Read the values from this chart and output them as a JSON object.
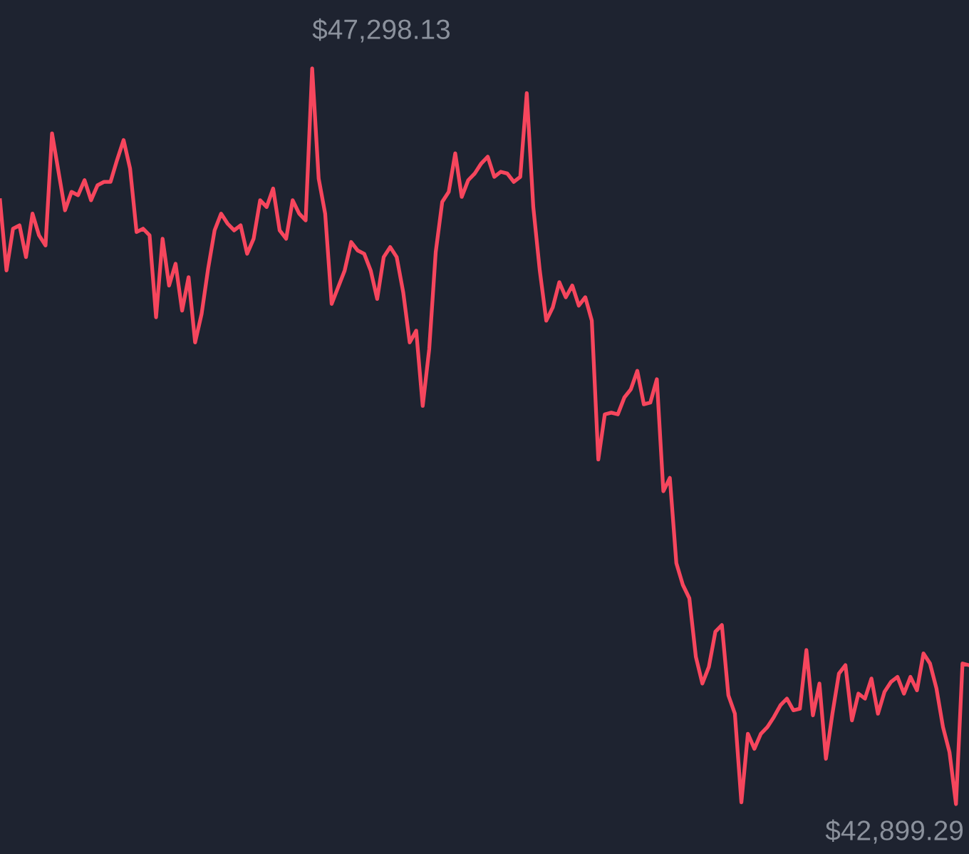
{
  "chart_data": {
    "type": "line",
    "line_style": "solid",
    "categories": [
      null,
      null,
      null,
      null,
      null,
      null,
      null,
      null,
      null,
      null,
      null,
      null,
      null,
      null,
      null,
      null,
      null,
      null,
      null,
      null,
      null,
      null,
      null,
      null,
      null,
      null,
      null,
      null,
      null,
      null,
      null,
      null,
      null,
      null,
      null,
      null,
      null,
      null,
      null,
      null,
      null,
      null,
      null,
      null,
      null,
      null,
      null,
      null,
      null,
      null,
      null,
      null,
      null,
      null,
      null,
      null,
      null,
      null,
      null,
      null,
      null,
      null,
      null,
      null,
      null,
      null,
      null,
      null,
      null,
      null,
      null,
      null,
      null,
      null,
      null,
      null,
      null,
      null,
      null,
      null,
      null,
      null,
      null,
      null,
      null,
      null,
      null,
      null,
      null,
      null,
      null,
      null,
      null,
      null,
      null,
      null,
      null,
      null,
      null,
      null,
      null,
      null,
      null,
      null,
      null,
      null,
      null,
      null,
      null,
      null,
      null,
      null,
      null,
      null,
      null,
      null,
      null,
      null,
      null,
      null,
      null,
      null,
      null,
      null,
      null,
      null,
      null,
      null,
      null,
      null,
      null,
      null,
      null,
      null,
      null,
      null,
      null,
      null,
      null,
      null,
      null,
      null,
      null,
      null,
      null,
      null,
      null,
      null,
      null,
      null
    ],
    "series": [
      {
        "color": "#f6465d",
        "values": [
          46510,
          46090,
          46340,
          46360,
          46170,
          46430,
          46300,
          46240,
          46910,
          46680,
          46450,
          46560,
          46540,
          46630,
          46510,
          46600,
          46620,
          46620,
          46750,
          46870,
          46700,
          46320,
          46340,
          46300,
          45810,
          46280,
          46000,
          46130,
          45850,
          46050,
          45660,
          45830,
          46100,
          46330,
          46430,
          46370,
          46330,
          46360,
          46190,
          46280,
          46510,
          46470,
          46580,
          46330,
          46280,
          46510,
          46430,
          46390,
          47298.13,
          46640,
          46430,
          45890,
          45990,
          46090,
          46260,
          46210,
          46190,
          46090,
          45920,
          46170,
          46230,
          46170,
          45960,
          45660,
          45730,
          45280,
          45620,
          46200,
          46500,
          46560,
          46790,
          46530,
          46630,
          46670,
          46730,
          46770,
          46650,
          46680,
          46670,
          46620,
          46650,
          47150,
          46470,
          46090,
          45790,
          45870,
          46020,
          45930,
          46000,
          45880,
          45930,
          45790,
          44960,
          45230,
          45240,
          45230,
          45330,
          45380,
          45490,
          45290,
          45300,
          45440,
          44770,
          44850,
          44340,
          44210,
          44130,
          43780,
          43620,
          43720,
          43930,
          43970,
          43550,
          43440,
          42910,
          43320,
          43230,
          43320,
          43360,
          43420,
          43490,
          43530,
          43460,
          43470,
          43820,
          43430,
          43620,
          43170,
          43440,
          43680,
          43730,
          43400,
          43560,
          43530,
          43650,
          43440,
          43570,
          43630,
          43660,
          43560,
          43660,
          43580,
          43800,
          43740,
          43590,
          43360,
          43210,
          42899.29,
          43740,
          43730
        ],
        "value_labels": [
          null,
          null,
          null,
          null,
          null,
          null,
          null,
          null,
          null,
          null,
          null,
          null,
          null,
          null,
          null,
          null,
          null,
          null,
          null,
          null,
          null,
          null,
          null,
          null,
          null,
          null,
          null,
          null,
          null,
          null,
          null,
          null,
          null,
          null,
          null,
          null,
          null,
          null,
          null,
          null,
          null,
          null,
          null,
          null,
          null,
          null,
          null,
          null,
          "$47,298.13",
          null,
          null,
          null,
          null,
          null,
          null,
          null,
          null,
          null,
          null,
          null,
          null,
          null,
          null,
          null,
          null,
          null,
          null,
          null,
          null,
          null,
          null,
          null,
          null,
          null,
          null,
          null,
          null,
          null,
          null,
          null,
          null,
          null,
          null,
          null,
          null,
          null,
          null,
          null,
          null,
          null,
          null,
          null,
          null,
          null,
          null,
          null,
          null,
          null,
          null,
          null,
          null,
          null,
          null,
          null,
          null,
          null,
          null,
          null,
          null,
          null,
          null,
          null,
          null,
          null,
          null,
          null,
          null,
          null,
          null,
          null,
          null,
          null,
          null,
          null,
          null,
          null,
          null,
          null,
          null,
          null,
          null,
          null,
          null,
          null,
          null,
          null,
          null,
          null,
          null,
          null,
          null,
          null,
          null,
          null,
          null,
          null,
          null,
          "$42,899.29",
          null,
          null
        ]
      }
    ]
  }
}
